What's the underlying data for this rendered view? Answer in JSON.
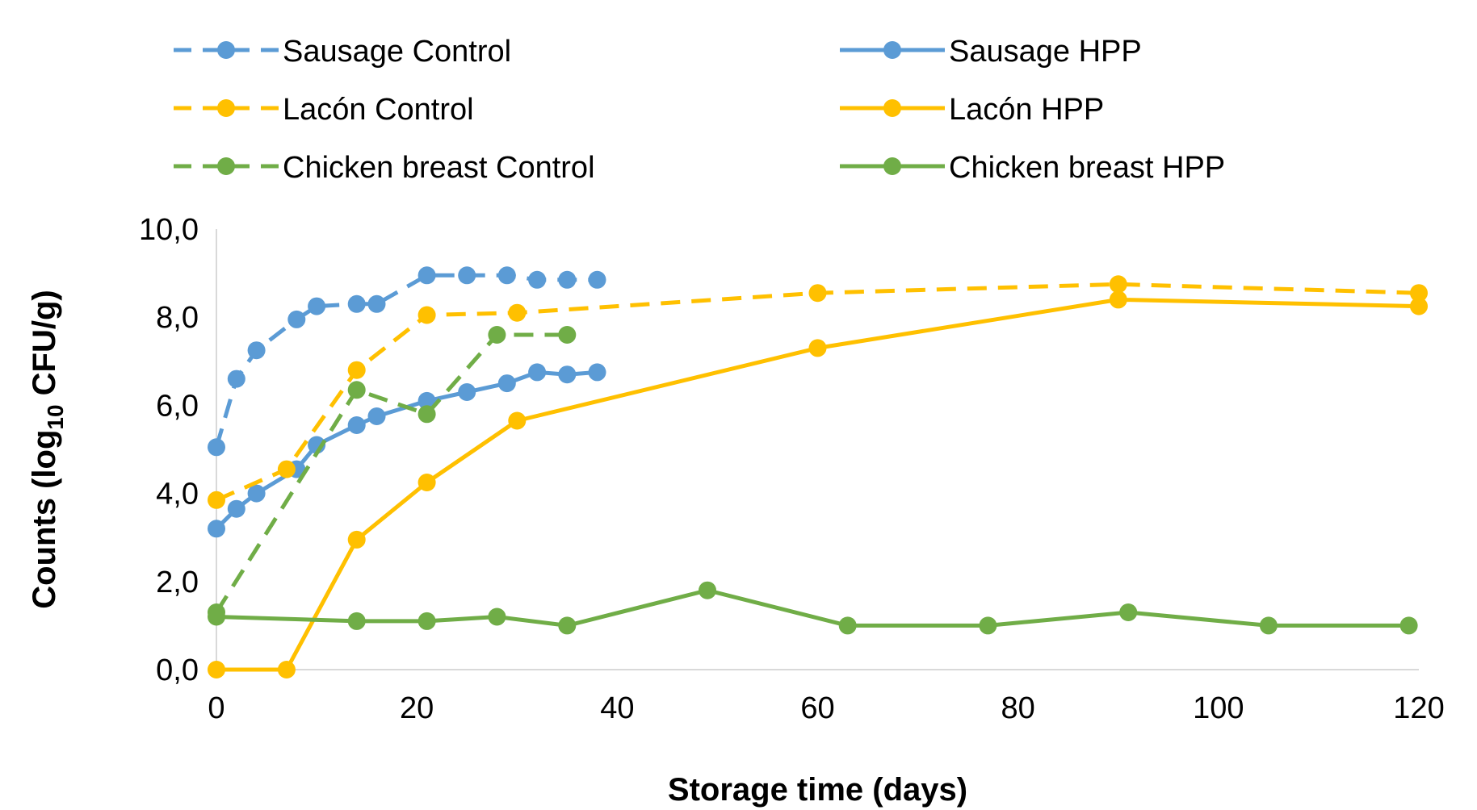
{
  "chart_data": {
    "type": "line",
    "title": "",
    "xlabel": "Storage time (days)",
    "ylabel": {
      "prefix": "Counts (log",
      "subscript": "10",
      "suffix": " CFU/g)"
    },
    "xlim": [
      0,
      120
    ],
    "ylim": [
      0,
      10
    ],
    "x_ticks": [
      0,
      20,
      40,
      60,
      80,
      100,
      120
    ],
    "x_tick_labels": [
      "0",
      "20",
      "40",
      "60",
      "80",
      "100",
      "120"
    ],
    "y_ticks": [
      0,
      2,
      4,
      6,
      8,
      10
    ],
    "y_tick_labels": [
      "0,0",
      "2,0",
      "4,0",
      "6,0",
      "8,0",
      "10,0"
    ],
    "grid": false,
    "legend": "top",
    "series": [
      {
        "name": "Sausage Control",
        "color": "#5b9bd5",
        "dashed": true,
        "points": [
          [
            0,
            5.05
          ],
          [
            2,
            6.6
          ],
          [
            4,
            7.25
          ],
          [
            8,
            7.95
          ],
          [
            10,
            8.25
          ],
          [
            14,
            8.3
          ],
          [
            16,
            8.3
          ],
          [
            21,
            8.95
          ],
          [
            25,
            8.95
          ],
          [
            29,
            8.95
          ],
          [
            32,
            8.85
          ],
          [
            35,
            8.85
          ],
          [
            38,
            8.85
          ]
        ]
      },
      {
        "name": "Sausage HPP",
        "color": "#5b9bd5",
        "dashed": false,
        "points": [
          [
            0,
            3.2
          ],
          [
            2,
            3.65
          ],
          [
            4,
            4.0
          ],
          [
            8,
            4.55
          ],
          [
            10,
            5.1
          ],
          [
            14,
            5.55
          ],
          [
            16,
            5.75
          ],
          [
            21,
            6.1
          ],
          [
            25,
            6.3
          ],
          [
            29,
            6.5
          ],
          [
            32,
            6.75
          ],
          [
            35,
            6.7
          ],
          [
            38,
            6.75
          ]
        ]
      },
      {
        "name": "Lacón Control",
        "color": "#ffc000",
        "dashed": true,
        "points": [
          [
            0,
            3.85
          ],
          [
            7,
            4.55
          ],
          [
            14,
            6.8
          ],
          [
            21,
            8.05
          ],
          [
            30,
            8.1
          ],
          [
            60,
            8.55
          ],
          [
            90,
            8.75
          ],
          [
            120,
            8.55
          ]
        ]
      },
      {
        "name": "Lacón HPP",
        "color": "#ffc000",
        "dashed": false,
        "points": [
          [
            0,
            0.0
          ],
          [
            7,
            0.0
          ],
          [
            14,
            2.95
          ],
          [
            21,
            4.25
          ],
          [
            30,
            5.65
          ],
          [
            60,
            7.3
          ],
          [
            90,
            8.4
          ],
          [
            120,
            8.25
          ]
        ]
      },
      {
        "name": "Chicken breast Control",
        "color": "#70ad47",
        "dashed": true,
        "points": [
          [
            0,
            1.3
          ],
          [
            14,
            6.35
          ],
          [
            21,
            5.8
          ],
          [
            28,
            7.6
          ],
          [
            35,
            7.6
          ]
        ]
      },
      {
        "name": "Chicken breast HPP",
        "color": "#70ad47",
        "dashed": false,
        "points": [
          [
            0,
            1.2
          ],
          [
            14,
            1.1
          ],
          [
            21,
            1.1
          ],
          [
            28,
            1.2
          ],
          [
            35,
            1.0
          ],
          [
            49,
            1.8
          ],
          [
            63,
            1.0
          ],
          [
            77,
            1.0
          ],
          [
            91,
            1.3
          ],
          [
            105,
            1.0
          ],
          [
            119,
            1.0
          ]
        ]
      }
    ]
  }
}
